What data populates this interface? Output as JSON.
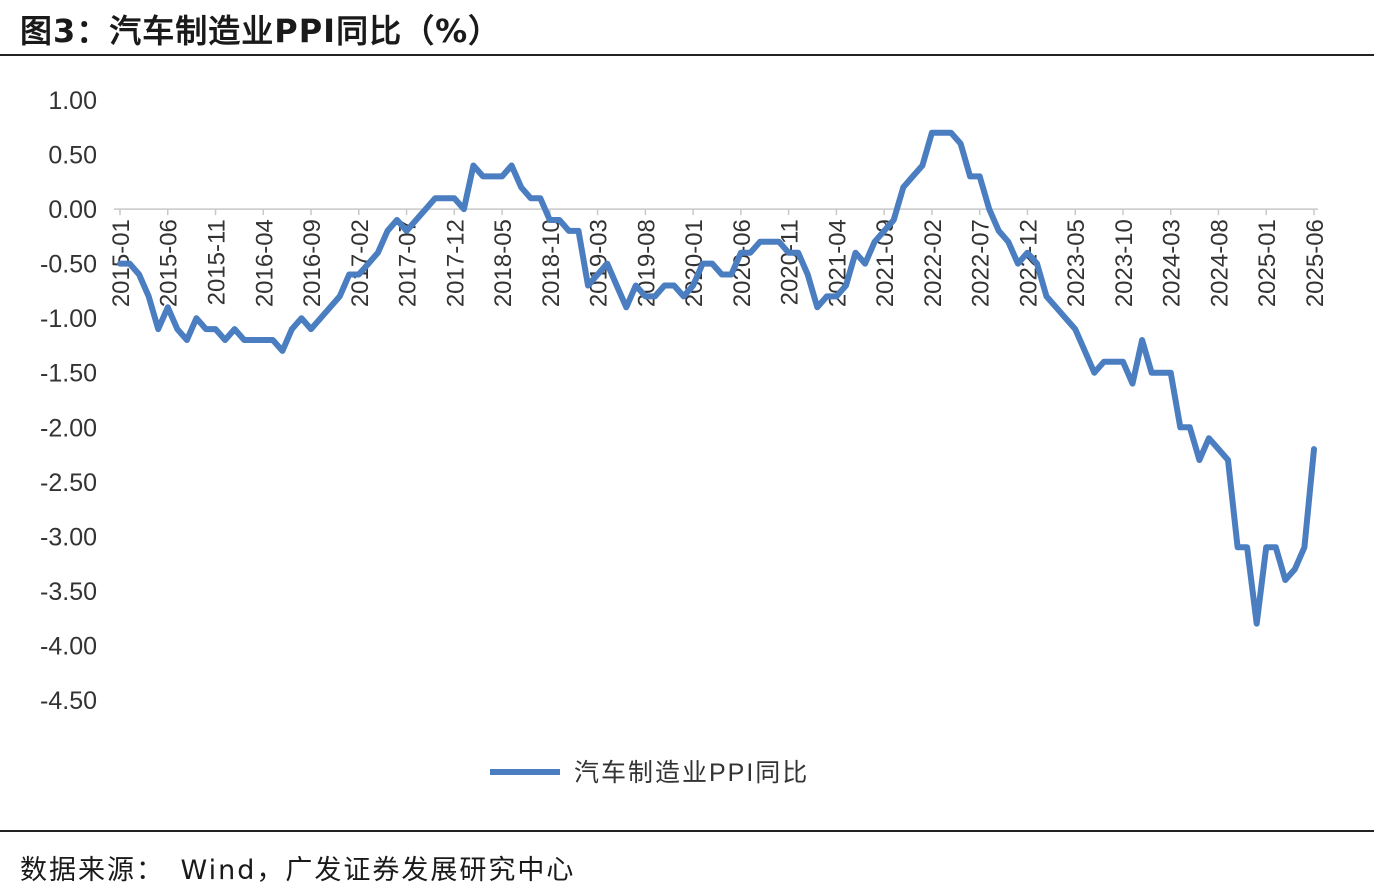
{
  "header": {
    "title": "图3：汽车制造业PPI同比（%）"
  },
  "footer": {
    "source": "数据来源：　Wind，广发证券发展研究中心"
  },
  "colors": {
    "series": "#4a7ec1",
    "axis": "#c8c8c8",
    "text": "#333333",
    "rule": "#222222"
  },
  "chart_data": {
    "type": "line",
    "title": "",
    "xlabel": "",
    "ylabel": "",
    "ylim": [
      -4.5,
      1.0
    ],
    "yticks": [
      "1.00",
      "0.50",
      "0.00",
      "-0.50",
      "-1.00",
      "-1.50",
      "-2.00",
      "-2.50",
      "-3.00",
      "-3.50",
      "-4.00",
      "-4.50"
    ],
    "xticks": [
      "2015-01",
      "2015-06",
      "2015-11",
      "2016-04",
      "2016-09",
      "2017-02",
      "2017-07",
      "2017-12",
      "2018-05",
      "2018-10",
      "2019-03",
      "2019-08",
      "2020-01",
      "2020-06",
      "2020-11",
      "2021-04",
      "2021-09",
      "2022-02",
      "2022-07",
      "2022-12",
      "2023-05",
      "2023-10",
      "2024-03",
      "2024-08",
      "2025-01",
      "2025-06"
    ],
    "grid": false,
    "legend": "bottom-center",
    "start": "2015-01",
    "series": [
      {
        "name": "汽车制造业PPI同比",
        "values": [
          -0.5,
          -0.5,
          -0.6,
          -0.8,
          -1.1,
          -0.9,
          -1.1,
          -1.2,
          -1.0,
          -1.1,
          -1.1,
          -1.2,
          -1.1,
          -1.2,
          -1.2,
          -1.2,
          -1.2,
          -1.3,
          -1.1,
          -1.0,
          -1.1,
          -1.0,
          -0.9,
          -0.8,
          -0.6,
          -0.6,
          -0.5,
          -0.4,
          -0.2,
          -0.1,
          -0.2,
          -0.1,
          0.0,
          0.1,
          0.1,
          0.1,
          0.0,
          0.4,
          0.3,
          0.3,
          0.3,
          0.4,
          0.2,
          0.1,
          0.1,
          -0.1,
          -0.1,
          -0.2,
          -0.2,
          -0.7,
          -0.6,
          -0.5,
          -0.7,
          -0.9,
          -0.7,
          -0.8,
          -0.8,
          -0.7,
          -0.7,
          -0.8,
          -0.7,
          -0.5,
          -0.5,
          -0.6,
          -0.6,
          -0.4,
          -0.4,
          -0.3,
          -0.3,
          -0.3,
          -0.4,
          -0.4,
          -0.6,
          -0.9,
          -0.8,
          -0.8,
          -0.7,
          -0.4,
          -0.5,
          -0.3,
          -0.2,
          -0.1,
          0.2,
          0.3,
          0.4,
          0.7,
          0.7,
          0.7,
          0.6,
          0.3,
          0.3,
          0.0,
          -0.2,
          -0.3,
          -0.5,
          -0.4,
          -0.5,
          -0.8,
          -0.9,
          -1.0,
          -1.1,
          -1.3,
          -1.5,
          -1.4,
          -1.4,
          -1.4,
          -1.6,
          -1.2,
          -1.5,
          -1.5,
          -1.5,
          -2.0,
          -2.0,
          -2.3,
          -2.1,
          -2.2,
          -2.3,
          -3.1,
          -3.1,
          -3.8,
          -3.1,
          -3.1,
          -3.4,
          -3.3,
          -3.1,
          -2.2
        ]
      }
    ]
  }
}
